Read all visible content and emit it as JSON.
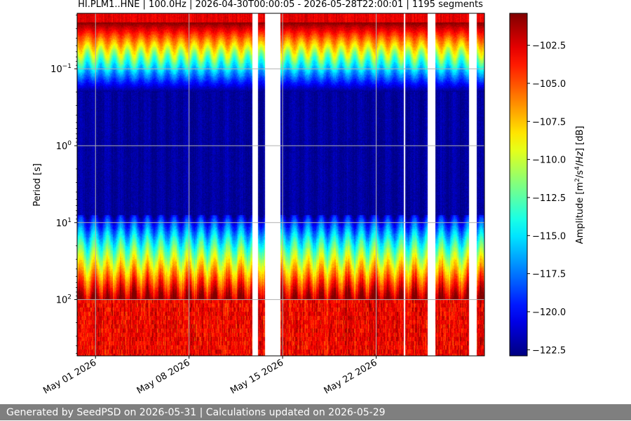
{
  "chart_data": {
    "type": "heatmap",
    "title": "HI.PLM1..HNE | 100.0Hz | 2026-04-30T00:00:05 - 2026-05-28T22:00:01 | 1195 segments",
    "ylabel": "Period [s]",
    "y_scale": "log",
    "y_inverted": true,
    "ylim": [
      0.019,
      540
    ],
    "y_ticks": [
      {
        "value": 0.1,
        "base": "10",
        "exp": "−1"
      },
      {
        "value": 1,
        "base": "10",
        "exp": "0"
      },
      {
        "value": 10,
        "base": "10",
        "exp": "1"
      },
      {
        "value": 100,
        "base": "10",
        "exp": "2"
      }
    ],
    "xlim": [
      "2026-04-29T15:00:00",
      "2026-05-30T02:30:00"
    ],
    "x_ticks": [
      {
        "value": "2026-05-01",
        "label": "May 01 2026"
      },
      {
        "value": "2026-05-08",
        "label": "May 08 2026"
      },
      {
        "value": "2026-05-15",
        "label": "May 15 2026"
      },
      {
        "value": "2026-05-22",
        "label": "May 22 2026"
      }
    ],
    "data_gaps": [
      [
        "2026-05-12T17:00:00",
        "2026-05-13T03:00:00"
      ],
      [
        "2026-05-13T16:00:00",
        "2026-05-14T19:00:00"
      ],
      [
        "2026-05-24T01:00:00",
        "2026-05-24T03:30:00"
      ],
      [
        "2026-05-25T20:00:00",
        "2026-05-26T10:00:00"
      ],
      [
        "2026-05-28T22:00:01",
        "2026-05-29T12:00:00"
      ]
    ],
    "colorbar": {
      "label": "Amplitude [m²/s⁴/Hz] [dB]",
      "min": -122.9,
      "max": -100.4,
      "ticks": [
        -102.5,
        -105.0,
        -107.5,
        -110.0,
        -112.5,
        -115.0,
        -117.5,
        -120.0,
        -122.5
      ],
      "tick_labels": [
        "−102.5",
        "−105.0",
        "−107.5",
        "−110.0",
        "−112.5",
        "−115.0",
        "−117.5",
        "−120.0",
        "−122.5"
      ],
      "colormap": "jet"
    },
    "grid": true,
    "colors": {
      "nodata": "#ffffff",
      "grid": "#b0b0b0",
      "footer_bg": "#7f7f7f"
    }
  },
  "footer": {
    "text": "Generated by SeedPSD on 2026-05-31 | Calculations updated on 2026-05-29"
  }
}
